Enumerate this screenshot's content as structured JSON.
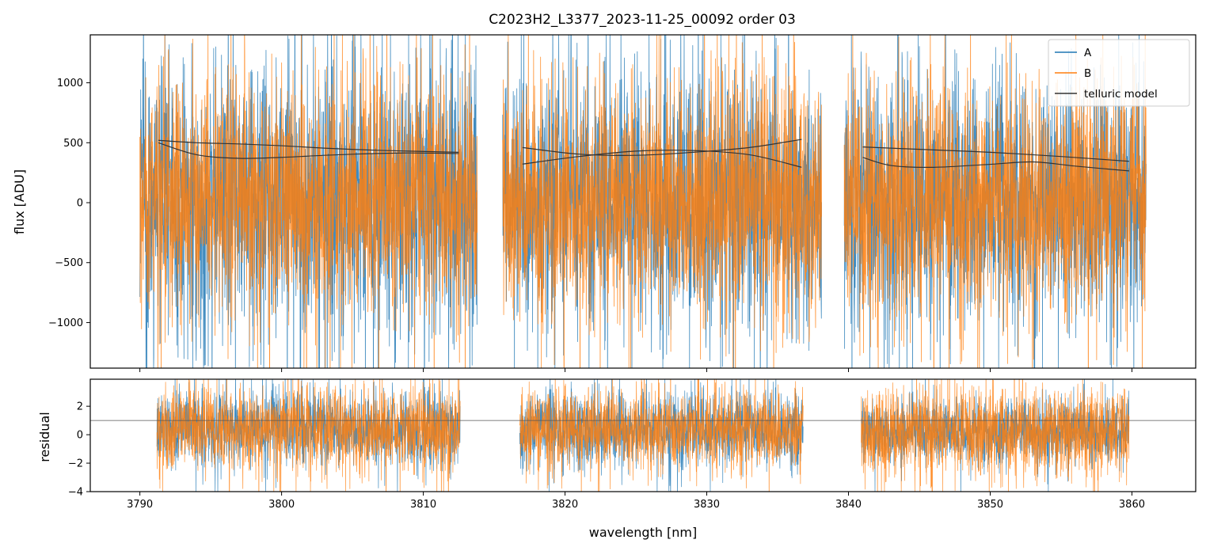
{
  "chart_data": {
    "type": "line",
    "title": "C2023H2_L3377_2023-11-25_00092  order 03",
    "colors": {
      "A": "#1f77b4",
      "B": "#ff7f0e",
      "model": "#333333"
    },
    "top": {
      "ylabel": "flux [ADU]",
      "xlim": [
        3786.5,
        3864.5
      ],
      "ylim": [
        -1380,
        1400
      ],
      "yticks": [
        -1000,
        -500,
        0,
        500,
        1000
      ],
      "ytick_labels": [
        "−1000",
        "−500",
        "0",
        "500",
        "1000"
      ],
      "legend": {
        "position": "top-right",
        "entries": [
          {
            "label": "A",
            "series": "A"
          },
          {
            "label": "B",
            "series": "B"
          },
          {
            "label": "telluric model",
            "series": "model"
          }
        ]
      },
      "segments": [
        {
          "x": [
            3790.0,
            3813.8
          ],
          "center": 50,
          "spread_A": 560,
          "spread_B": 470
        },
        {
          "x": [
            3815.6,
            3838.1
          ],
          "center": 20,
          "spread_A": 500,
          "spread_B": 480
        },
        {
          "x": [
            3839.7,
            3861.0
          ],
          "center": 0,
          "spread_A": 480,
          "spread_B": 470
        }
      ],
      "telluric_model": [
        {
          "x": [
            3791.3,
            3794,
            3797,
            3800,
            3803,
            3806,
            3809,
            3812.5
          ],
          "y": [
            520,
            500,
            490,
            475,
            455,
            440,
            430,
            420
          ]
        },
        {
          "x": [
            3791.3,
            3794,
            3797,
            3800,
            3803,
            3806,
            3809,
            3812.5
          ],
          "y": [
            500,
            400,
            370,
            378,
            395,
            408,
            415,
            410
          ]
        },
        {
          "x": [
            3817.0,
            3821,
            3825,
            3829,
            3833,
            3836.7
          ],
          "y": [
            460,
            405,
            395,
            420,
            460,
            528
          ]
        },
        {
          "x": [
            3817.0,
            3821,
            3825,
            3829,
            3833,
            3836.7
          ],
          "y": [
            322,
            385,
            430,
            435,
            400,
            295
          ]
        },
        {
          "x": [
            3841.0,
            3845,
            3850,
            3855,
            3859.8
          ],
          "y": [
            465,
            445,
            420,
            385,
            345
          ]
        },
        {
          "x": [
            3841.0,
            3843,
            3846,
            3850,
            3853,
            3856,
            3859.8
          ],
          "y": [
            378,
            310,
            295,
            320,
            340,
            305,
            265
          ]
        }
      ]
    },
    "bottom": {
      "xlabel": "wavelength [nm]",
      "ylabel": "residual",
      "xlim": [
        3786.5,
        3864.5
      ],
      "ylim": [
        -4,
        3.9
      ],
      "yticks": [
        -4,
        -2,
        0,
        2
      ],
      "ytick_labels": [
        "−4",
        "−2",
        "0",
        "2"
      ],
      "xticks": [
        3790,
        3800,
        3810,
        3820,
        3830,
        3840,
        3850,
        3860
      ],
      "xtick_labels": [
        "3790",
        "3800",
        "3810",
        "3820",
        "3830",
        "3840",
        "3850",
        "3860"
      ],
      "reference_line": 1,
      "segments": [
        {
          "x": [
            3791.2,
            3812.6
          ],
          "center": 0.4,
          "spread_A": 1.25,
          "spread_B": 1.45
        },
        {
          "x": [
            3816.8,
            3836.8
          ],
          "center": 0.3,
          "spread_A": 1.2,
          "spread_B": 1.3
        },
        {
          "x": [
            3840.9,
            3859.8
          ],
          "center": 0.2,
          "spread_A": 1.1,
          "spread_B": 1.5
        }
      ]
    }
  }
}
